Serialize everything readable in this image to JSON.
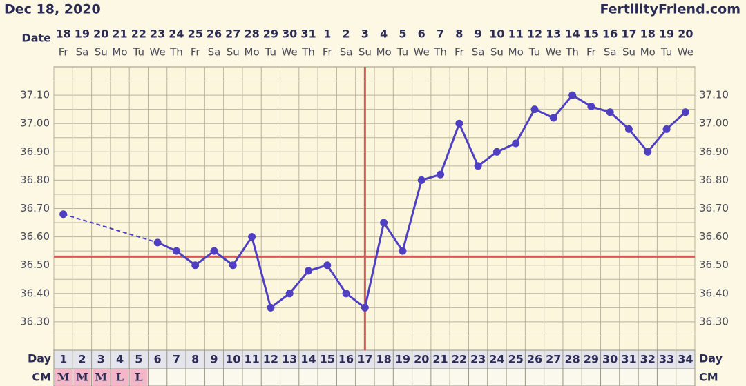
{
  "chart_data": {
    "type": "line",
    "title": "Dec 18, 2020",
    "site": "FertilityFriend.com",
    "date_label": "Date",
    "day_label": "Day",
    "cm_label": "CM",
    "categories": [
      "18",
      "19",
      "20",
      "21",
      "22",
      "23",
      "24",
      "25",
      "26",
      "27",
      "28",
      "29",
      "30",
      "31",
      "1",
      "2",
      "3",
      "4",
      "5",
      "6",
      "7",
      "8",
      "9",
      "10",
      "11",
      "12",
      "13",
      "14",
      "15",
      "16",
      "17",
      "18",
      "19",
      "20"
    ],
    "weekdays": [
      "Fr",
      "Sa",
      "Su",
      "Mo",
      "Tu",
      "We",
      "Th",
      "Fr",
      "Sa",
      "Su",
      "Mo",
      "Tu",
      "We",
      "Th",
      "Fr",
      "Sa",
      "Su",
      "Mo",
      "Tu",
      "We",
      "Th",
      "Fr",
      "Sa",
      "Su",
      "Mo",
      "Tu",
      "We",
      "Th",
      "Fr",
      "Sa",
      "Su",
      "Mo",
      "Tu",
      "We"
    ],
    "days": [
      1,
      2,
      3,
      4,
      5,
      6,
      7,
      8,
      9,
      10,
      11,
      12,
      13,
      14,
      15,
      16,
      17,
      18,
      19,
      20,
      21,
      22,
      23,
      24,
      25,
      26,
      27,
      28,
      29,
      30,
      31,
      32,
      33,
      34
    ],
    "cm": [
      "M",
      "M",
      "M",
      "L",
      "L"
    ],
    "values": [
      36.68,
      null,
      null,
      null,
      null,
      36.58,
      36.55,
      36.5,
      36.55,
      36.5,
      36.6,
      36.35,
      36.4,
      36.48,
      36.5,
      36.4,
      36.35,
      36.65,
      36.55,
      36.8,
      36.82,
      37.0,
      36.85,
      36.9,
      36.93,
      37.05,
      37.02,
      37.1,
      37.06,
      37.04,
      36.98,
      36.9,
      36.98,
      37.04
    ],
    "color": "#4f3fc2",
    "coverline": 36.53,
    "coverline_color": "#d9565a",
    "ovulation_day": 17,
    "ylim": [
      36.2,
      37.2
    ],
    "yticks": [
      {
        "value": 36.3,
        "label": "36.30"
      },
      {
        "value": 36.4,
        "label": "36.40"
      },
      {
        "value": 36.5,
        "label": "36.50"
      },
      {
        "value": 36.6,
        "label": "36.60"
      },
      {
        "value": 36.7,
        "label": "36.70"
      },
      {
        "value": 36.8,
        "label": "36.80"
      },
      {
        "value": 36.9,
        "label": "36.90"
      },
      {
        "value": 37.0,
        "label": "37.00"
      },
      {
        "value": 37.1,
        "label": "37.10"
      }
    ],
    "grid": true
  }
}
